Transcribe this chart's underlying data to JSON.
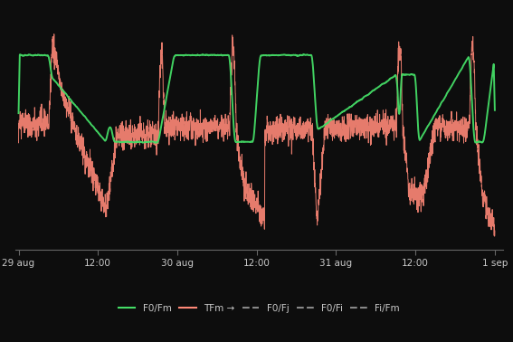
{
  "background_color": "#0d0d0d",
  "text_color": "#c8c8c8",
  "axis_color": "#666666",
  "green_color": "#44dd66",
  "salmon_color": "#ff8877",
  "x_tick_labels": [
    "29 aug",
    "12:00",
    "30 aug",
    "12:00",
    "31 aug",
    "12:00",
    "1 sep"
  ],
  "x_tick_positions": [
    0,
    0.5,
    1.0,
    1.5,
    2.0,
    2.5,
    3.0
  ],
  "figsize": [
    5.67,
    3.78
  ],
  "dpi": 100,
  "legend_entries": [
    "F0/Fm",
    "TFm →",
    "F0/Fj",
    "F0/Fi",
    "Fi/Fm"
  ],
  "legend_colors": [
    "#44dd66",
    "#ff8877",
    "#888888",
    "#888888",
    "#888888"
  ],
  "legend_linestyles": [
    "-",
    "-",
    "--",
    "--",
    "--"
  ]
}
